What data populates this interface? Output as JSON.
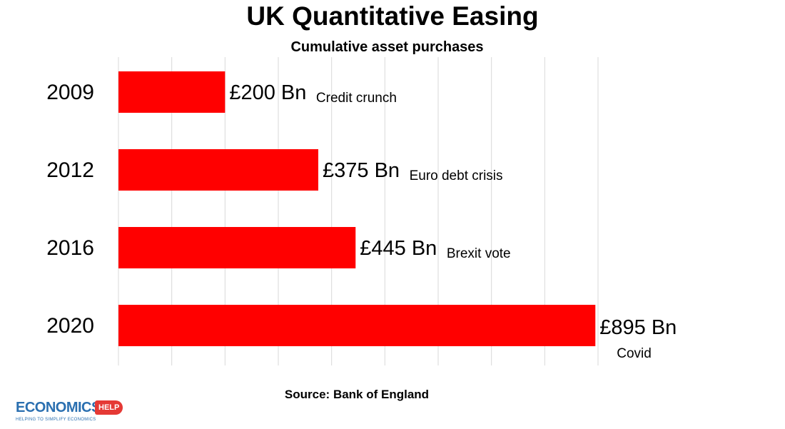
{
  "chart_data": {
    "type": "bar",
    "orientation": "horizontal",
    "title": "UK Quantitative Easing",
    "subtitle": "Cumulative asset purchases",
    "categories": [
      "2009",
      "2012",
      "2016",
      "2020"
    ],
    "values": [
      200,
      375,
      445,
      895
    ],
    "value_labels": [
      "£200 Bn",
      "£375 Bn",
      "£445 Bn",
      "£895 Bn"
    ],
    "annotations": [
      "Credit crunch",
      "Euro debt crisis",
      "Brexit vote",
      "Covid"
    ],
    "xlim": [
      0,
      900
    ],
    "grid": true,
    "bar_color": "#ff0000",
    "source": "Source: Bank of England"
  },
  "logo": {
    "word": "ECONOMICS",
    "badge": "HELP",
    "tagline": "HELPING TO SIMPLIFY ECONOMICS",
    "color": "#2a6fb0",
    "badge_color": "#e53935"
  }
}
